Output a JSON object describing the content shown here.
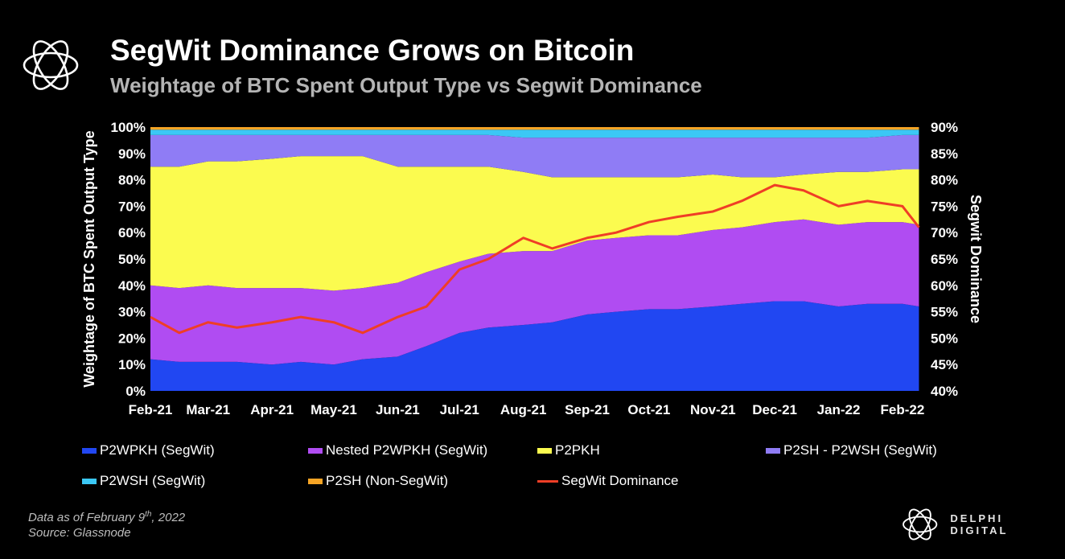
{
  "header": {
    "title": "SegWit Dominance Grows on Bitcoin",
    "subtitle": "Weightage of BTC Spent Output Type vs Segwit Dominance",
    "logo_icon": "flower-outline-icon"
  },
  "footer": {
    "data_as_of_prefix": "Data as of February 9",
    "data_as_of_sup": "th",
    "data_as_of_suffix": ", 2022",
    "source": "Source: Glassnode",
    "brand_name": "DELPHI DIGITAL",
    "brand_icon": "flower-outline-icon"
  },
  "chart_data": {
    "type": "area",
    "stacked": true,
    "background": "#000000",
    "grid": false,
    "legend_position": "bottom",
    "ylabel": "Weightage of BTC Spent Output Type",
    "y2label": "Segwit Dominance",
    "ylim": [
      0,
      100
    ],
    "y2lim": [
      40,
      90
    ],
    "y_ticks": [
      "0%",
      "10%",
      "20%",
      "30%",
      "40%",
      "50%",
      "60%",
      "70%",
      "80%",
      "90%",
      "100%"
    ],
    "y2_ticks": [
      "40%",
      "45%",
      "50%",
      "55%",
      "60%",
      "65%",
      "70%",
      "75%",
      "80%",
      "85%",
      "90%"
    ],
    "x_ticks": [
      "Feb-21",
      "Mar-21",
      "Apr-21",
      "May-21",
      "Jun-21",
      "Jul-21",
      "Aug-21",
      "Sep-21",
      "Oct-21",
      "Nov-21",
      "Dec-21",
      "Jan-22",
      "Feb-22"
    ],
    "x": [
      "2021-02-01",
      "2021-02-15",
      "2021-03-01",
      "2021-03-15",
      "2021-04-01",
      "2021-04-15",
      "2021-05-01",
      "2021-05-15",
      "2021-06-01",
      "2021-06-15",
      "2021-07-01",
      "2021-07-15",
      "2021-08-01",
      "2021-08-15",
      "2021-09-01",
      "2021-09-15",
      "2021-10-01",
      "2021-10-15",
      "2021-11-01",
      "2021-11-15",
      "2021-12-01",
      "2021-12-15",
      "2022-01-01",
      "2022-01-15",
      "2022-02-01",
      "2022-02-09"
    ],
    "series": [
      {
        "name": "P2WPKH (SegWit)",
        "color": "#2147f2",
        "axis": "left",
        "values": [
          12,
          11,
          11,
          11,
          10,
          11,
          10,
          12,
          13,
          17,
          22,
          24,
          25,
          26,
          29,
          30,
          31,
          31,
          32,
          33,
          34,
          34,
          32,
          33,
          33,
          32
        ]
      },
      {
        "name": "Nested P2WPKH (SegWit)",
        "color": "#b04cf2",
        "axis": "left",
        "values": [
          28,
          28,
          29,
          28,
          29,
          28,
          28,
          27,
          28,
          28,
          27,
          28,
          28,
          27,
          28,
          28,
          28,
          28,
          29,
          29,
          30,
          31,
          31,
          31,
          31,
          31
        ]
      },
      {
        "name": "P2PKH",
        "color": "#fbfb4f",
        "axis": "left",
        "values": [
          45,
          46,
          47,
          48,
          49,
          50,
          51,
          50,
          44,
          40,
          36,
          33,
          30,
          28,
          24,
          23,
          22,
          22,
          21,
          19,
          17,
          17,
          20,
          19,
          20,
          21
        ]
      },
      {
        "name": "P2SH - P2WSH (SegWit)",
        "color": "#8f7cf5",
        "axis": "left",
        "values": [
          12,
          12,
          10,
          10,
          9,
          8,
          8,
          8,
          12,
          12,
          12,
          12,
          13,
          15,
          15,
          15,
          15,
          15,
          14,
          15,
          15,
          14,
          13,
          13,
          13,
          13
        ]
      },
      {
        "name": "P2WSH (SegWit)",
        "color": "#3bc8f5",
        "axis": "left",
        "values": [
          2,
          2,
          2,
          2,
          2,
          2,
          2,
          2,
          2,
          2,
          2,
          2,
          3,
          3,
          3,
          3,
          3,
          3,
          3,
          3,
          3,
          3,
          3,
          3,
          2,
          2
        ]
      },
      {
        "name": "P2SH (Non-SegWit)",
        "color": "#f5a425",
        "axis": "left",
        "values": [
          1,
          1,
          1,
          1,
          1,
          1,
          1,
          1,
          1,
          1,
          1,
          1,
          1,
          1,
          1,
          1,
          1,
          1,
          1,
          1,
          1,
          1,
          1,
          1,
          1,
          1
        ]
      },
      {
        "name": "SegWit Dominance",
        "color": "#ef3e26",
        "axis": "right",
        "type": "line",
        "values": [
          54,
          51,
          53,
          52,
          53,
          54,
          53,
          51,
          54,
          56,
          63,
          65,
          69,
          67,
          69,
          70,
          72,
          73,
          74,
          76,
          79,
          78,
          75,
          76,
          75,
          71
        ]
      }
    ]
  }
}
